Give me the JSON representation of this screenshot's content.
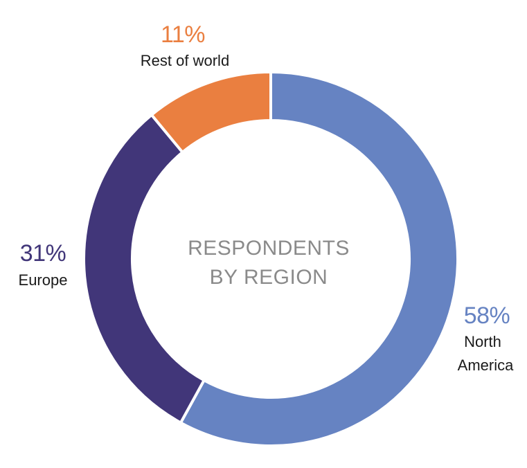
{
  "chart_data": {
    "type": "pie",
    "variant": "donut",
    "center_label": [
      "RESPONDENTS",
      "BY REGION"
    ],
    "slices": [
      {
        "label": [
          "North",
          "America"
        ],
        "value": 58,
        "value_label": "58%",
        "color": "#6683c2"
      },
      {
        "label": [
          "Europe"
        ],
        "value": 31,
        "value_label": "31%",
        "color": "#413679"
      },
      {
        "label": [
          "Rest of world"
        ],
        "value": 11,
        "value_label": "11%",
        "color": "#ea7f40"
      }
    ],
    "start_angle_deg": 0,
    "direction": "clockwise",
    "legend": "none"
  }
}
